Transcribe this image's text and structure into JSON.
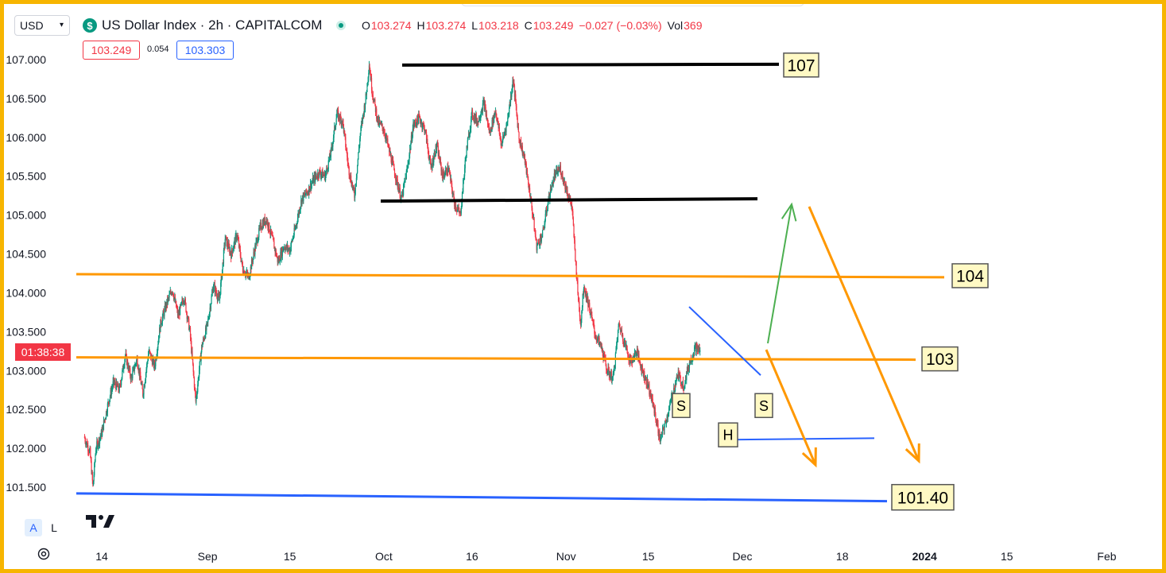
{
  "header": {
    "currency": "USD",
    "symbol_icon": "dollar-badge-icon",
    "symbol_title": "US Dollar Index · 2h · CAPITALCOM",
    "ohlc": {
      "o_label": "O",
      "o": "103.274",
      "h_label": "H",
      "h": "103.274",
      "l_label": "L",
      "l": "103.218",
      "c_label": "C",
      "c": "103.249",
      "change": "−0.027 (−0.03%)",
      "vol_label": "Vol",
      "vol": "369"
    },
    "bid": "103.249",
    "spread": "0.054",
    "ask": "103.303"
  },
  "countdown": "01:38:38",
  "controls": {
    "auto": "A",
    "log": "L"
  },
  "colors": {
    "up": "#089981",
    "down": "#f23645",
    "orange": "#ff9800",
    "blue": "#2962ff",
    "black": "#000000",
    "green": "#4caf50",
    "label_bg": "#fff9c4",
    "frame": "#f7b500"
  },
  "chart_data": {
    "type": "candlestick",
    "interval": "2h",
    "y_ticks": [
      "107.000",
      "106.500",
      "106.000",
      "105.500",
      "105.000",
      "104.500",
      "104.000",
      "103.500",
      "103.000",
      "102.500",
      "102.000",
      "101.500"
    ],
    "ylim": [
      101.3,
      107.25
    ],
    "x_ticks": [
      {
        "label": "14",
        "day": 0
      },
      {
        "label": "Sep",
        "day": 18
      },
      {
        "label": "15",
        "day": 32
      },
      {
        "label": "Oct",
        "day": 48
      },
      {
        "label": "16",
        "day": 63
      },
      {
        "label": "Nov",
        "day": 79
      },
      {
        "label": "15",
        "day": 93
      },
      {
        "label": "Dec",
        "day": 109
      },
      {
        "label": "18",
        "day": 126
      },
      {
        "label": "2024",
        "day": 140
      },
      {
        "label": "15",
        "day": 154
      },
      {
        "label": "Feb",
        "day": 171
      }
    ],
    "x_range_days": [
      -3,
      178
    ],
    "price_path": [
      [
        -3,
        102.15
      ],
      [
        -2,
        101.95
      ],
      [
        -1.5,
        101.5
      ],
      [
        -1,
        102.0
      ],
      [
        0,
        102.2
      ],
      [
        1,
        102.55
      ],
      [
        2,
        102.85
      ],
      [
        3,
        102.75
      ],
      [
        4,
        103.2
      ],
      [
        5,
        102.9
      ],
      [
        6,
        103.15
      ],
      [
        7,
        102.7
      ],
      [
        8,
        103.25
      ],
      [
        9,
        103.05
      ],
      [
        10,
        103.6
      ],
      [
        11,
        103.85
      ],
      [
        12,
        104.05
      ],
      [
        13,
        103.7
      ],
      [
        14,
        103.95
      ],
      [
        15,
        103.5
      ],
      [
        16,
        102.6
      ],
      [
        17,
        103.3
      ],
      [
        18,
        103.6
      ],
      [
        19,
        104.1
      ],
      [
        20,
        103.9
      ],
      [
        21,
        104.7
      ],
      [
        22,
        104.5
      ],
      [
        23,
        104.75
      ],
      [
        24,
        104.3
      ],
      [
        25,
        104.2
      ],
      [
        26,
        104.55
      ],
      [
        27,
        104.85
      ],
      [
        28,
        104.95
      ],
      [
        29,
        104.7
      ],
      [
        30,
        104.4
      ],
      [
        31,
        104.6
      ],
      [
        32,
        104.55
      ],
      [
        33,
        104.85
      ],
      [
        34,
        105.2
      ],
      [
        35,
        105.3
      ],
      [
        36,
        105.45
      ],
      [
        37,
        105.55
      ],
      [
        38,
        105.5
      ],
      [
        39,
        105.8
      ],
      [
        40,
        106.3
      ],
      [
        41,
        106.2
      ],
      [
        42,
        105.6
      ],
      [
        43,
        105.25
      ],
      [
        44,
        106.05
      ],
      [
        45,
        106.55
      ],
      [
        45.5,
        106.95
      ],
      [
        46,
        106.6
      ],
      [
        47,
        106.2
      ],
      [
        48,
        106.1
      ],
      [
        49,
        105.8
      ],
      [
        50,
        105.5
      ],
      [
        51,
        105.2
      ],
      [
        52,
        105.6
      ],
      [
        53,
        106.15
      ],
      [
        54,
        106.25
      ],
      [
        55,
        106.1
      ],
      [
        56,
        105.6
      ],
      [
        57,
        105.9
      ],
      [
        58,
        105.5
      ],
      [
        59,
        105.6
      ],
      [
        60,
        105.15
      ],
      [
        61,
        105.0
      ],
      [
        62,
        105.8
      ],
      [
        63,
        106.3
      ],
      [
        64,
        106.2
      ],
      [
        65,
        106.45
      ],
      [
        66,
        106.05
      ],
      [
        67,
        106.35
      ],
      [
        68,
        105.9
      ],
      [
        69,
        106.2
      ],
      [
        70,
        106.75
      ],
      [
        71,
        106.0
      ],
      [
        72,
        105.7
      ],
      [
        73,
        105.2
      ],
      [
        74,
        104.6
      ],
      [
        75,
        104.75
      ],
      [
        76,
        105.2
      ],
      [
        77,
        105.5
      ],
      [
        78,
        105.6
      ],
      [
        79,
        105.35
      ],
      [
        80,
        105.1
      ],
      [
        81,
        104.0
      ],
      [
        81.5,
        103.6
      ],
      [
        82,
        104.1
      ],
      [
        83,
        103.8
      ],
      [
        84,
        103.45
      ],
      [
        85,
        103.3
      ],
      [
        86,
        103.0
      ],
      [
        87,
        102.9
      ],
      [
        88,
        103.6
      ],
      [
        89,
        103.35
      ],
      [
        90,
        103.1
      ],
      [
        91,
        103.25
      ],
      [
        92,
        103.0
      ],
      [
        93,
        102.8
      ],
      [
        94,
        102.5
      ],
      [
        95,
        102.1
      ],
      [
        96,
        102.35
      ],
      [
        97,
        102.65
      ],
      [
        98,
        102.95
      ],
      [
        99,
        102.8
      ],
      [
        100,
        103.1
      ],
      [
        101,
        103.3
      ],
      [
        101.8,
        103.25
      ]
    ],
    "annotations": {
      "horizontal_levels": [
        {
          "label": "107",
          "y": 106.93,
          "color": "black"
        },
        {
          "label": "104",
          "y": 104.22,
          "color": "orange"
        },
        {
          "label": "103",
          "y": 103.15,
          "color": "orange"
        },
        {
          "label": "101.40",
          "y": 101.37,
          "color": "blue"
        }
      ],
      "neck_support_level": 105.2,
      "head_support_level": 102.12,
      "pattern_labels": [
        "S",
        "H",
        "S"
      ],
      "trendline": {
        "from": [
          88.5,
          103.8
        ],
        "to": [
          103,
          102.95
        ]
      },
      "arrows": [
        {
          "color": "green",
          "from": [
            103,
            103.35
          ],
          "to": [
            107.5,
            105.15
          ]
        },
        {
          "color": "orange",
          "from": [
            103,
            103.25
          ],
          "to": [
            108.5,
            101.8
          ]
        },
        {
          "color": "orange",
          "from": [
            116,
            105.1
          ],
          "to": [
            126.5,
            101.85
          ]
        }
      ]
    }
  }
}
